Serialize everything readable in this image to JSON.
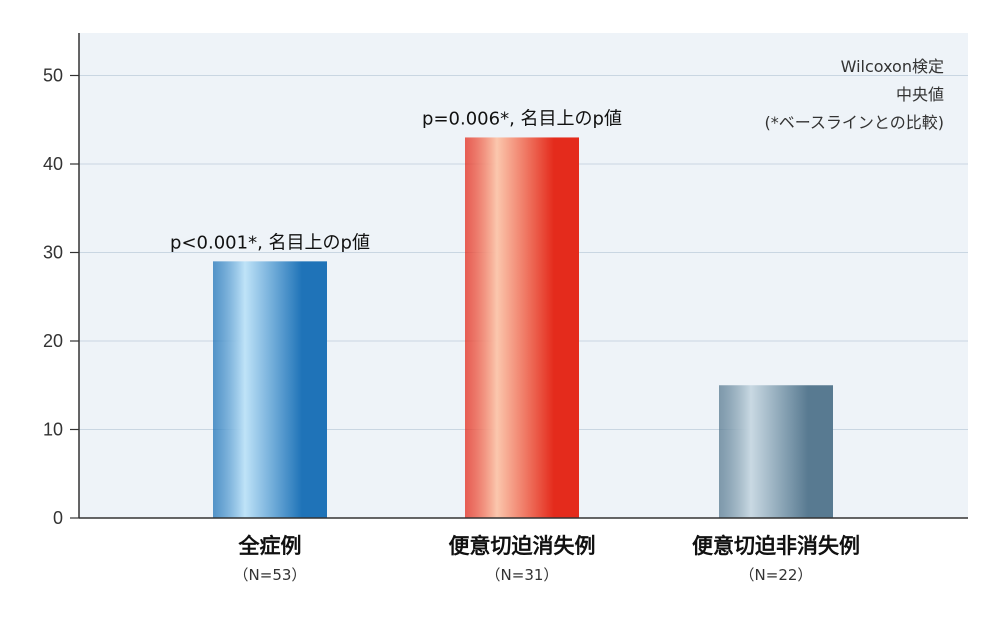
{
  "chart_data": {
    "type": "bar",
    "categories": [
      "全症例",
      "便意切迫消失例",
      "便意切迫非消失例"
    ],
    "sample_sizes": [
      "（N=53）",
      "（N=31）",
      "（N=22）"
    ],
    "values": [
      29,
      43,
      15
    ],
    "annotations": [
      "p<0.001*, 名目上のp値",
      "p=0.006*, 名目上のp値",
      ""
    ],
    "ylim": [
      0,
      55
    ],
    "yticks": [
      0,
      10,
      20,
      30,
      40,
      50
    ],
    "grid": true,
    "notes": [
      "Wilcoxon検定",
      "中央値",
      "(*ベースラインとの比較)"
    ],
    "colors": [
      {
        "light": "#bfe3f8",
        "dark": "#1f73b8"
      },
      {
        "light": "#fbc7ad",
        "dark": "#e42b1c"
      },
      {
        "light": "#c9d9e3",
        "dark": "#587a91"
      }
    ],
    "plot_background": "#eef3f8",
    "grid_color": "#c9d6e2"
  }
}
